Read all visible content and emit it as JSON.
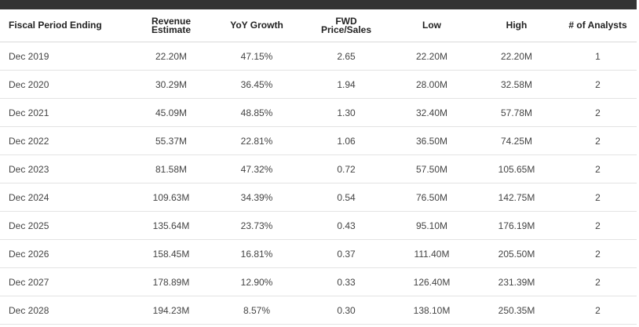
{
  "table": {
    "headers": {
      "period": "Fiscal Period Ending",
      "revenue_line1": "Revenue",
      "revenue_line2": "Estimate",
      "yoy": "YoY Growth",
      "fwd_line1": "FWD",
      "fwd_line2": "Price/Sales",
      "low": "Low",
      "high": "High",
      "analysts": "# of Analysts"
    },
    "rows": [
      {
        "period": "Dec 2019",
        "revenue": "22.20M",
        "yoy": "47.15%",
        "fwd": "2.65",
        "low": "22.20M",
        "high": "22.20M",
        "analysts": "1"
      },
      {
        "period": "Dec 2020",
        "revenue": "30.29M",
        "yoy": "36.45%",
        "fwd": "1.94",
        "low": "28.00M",
        "high": "32.58M",
        "analysts": "2"
      },
      {
        "period": "Dec 2021",
        "revenue": "45.09M",
        "yoy": "48.85%",
        "fwd": "1.30",
        "low": "32.40M",
        "high": "57.78M",
        "analysts": "2"
      },
      {
        "period": "Dec 2022",
        "revenue": "55.37M",
        "yoy": "22.81%",
        "fwd": "1.06",
        "low": "36.50M",
        "high": "74.25M",
        "analysts": "2"
      },
      {
        "period": "Dec 2023",
        "revenue": "81.58M",
        "yoy": "47.32%",
        "fwd": "0.72",
        "low": "57.50M",
        "high": "105.65M",
        "analysts": "2"
      },
      {
        "period": "Dec 2024",
        "revenue": "109.63M",
        "yoy": "34.39%",
        "fwd": "0.54",
        "low": "76.50M",
        "high": "142.75M",
        "analysts": "2"
      },
      {
        "period": "Dec 2025",
        "revenue": "135.64M",
        "yoy": "23.73%",
        "fwd": "0.43",
        "low": "95.10M",
        "high": "176.19M",
        "analysts": "2"
      },
      {
        "period": "Dec 2026",
        "revenue": "158.45M",
        "yoy": "16.81%",
        "fwd": "0.37",
        "low": "111.40M",
        "high": "205.50M",
        "analysts": "2"
      },
      {
        "period": "Dec 2027",
        "revenue": "178.89M",
        "yoy": "12.90%",
        "fwd": "0.33",
        "low": "126.40M",
        "high": "231.39M",
        "analysts": "2"
      },
      {
        "period": "Dec 2028",
        "revenue": "194.23M",
        "yoy": "8.57%",
        "fwd": "0.30",
        "low": "138.10M",
        "high": "250.35M",
        "analysts": "2"
      }
    ]
  }
}
